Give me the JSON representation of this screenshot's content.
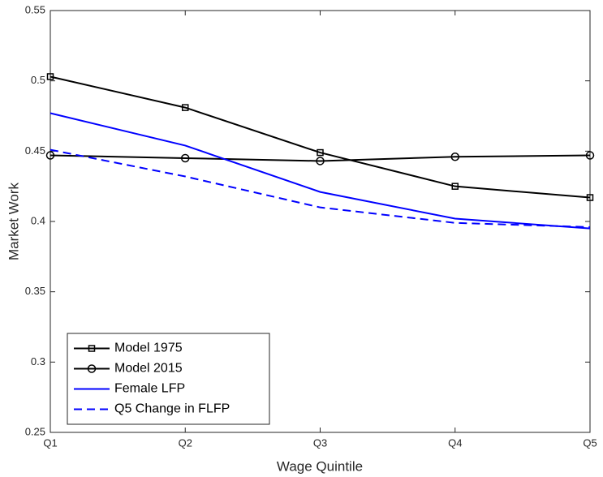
{
  "chart_data": {
    "type": "line",
    "xlabel": "Wage Quintile",
    "ylabel": "Market Work",
    "categories": [
      "Q1",
      "Q2",
      "Q3",
      "Q4",
      "Q5"
    ],
    "series": [
      {
        "name": "Model 1975",
        "color": "#000000",
        "marker": "square",
        "dash": "solid",
        "values": [
          0.503,
          0.481,
          0.449,
          0.425,
          0.417
        ]
      },
      {
        "name": "Model 2015",
        "color": "#000000",
        "marker": "circle",
        "dash": "solid",
        "values": [
          0.447,
          0.445,
          0.443,
          0.446,
          0.447
        ]
      },
      {
        "name": "Female LFP",
        "color": "#0000ff",
        "marker": "none",
        "dash": "solid",
        "values": [
          0.477,
          0.454,
          0.421,
          0.402,
          0.395
        ]
      },
      {
        "name": "Q5 Change in FLFP",
        "color": "#0000ff",
        "marker": "none",
        "dash": "dashed",
        "values": [
          0.451,
          0.432,
          0.41,
          0.399,
          0.396
        ]
      }
    ],
    "ylim": [
      0.25,
      0.55
    ],
    "yticks": [
      0.25,
      0.3,
      0.35,
      0.4,
      0.45,
      0.5,
      0.55
    ],
    "grid": false,
    "legend": "lower left"
  }
}
